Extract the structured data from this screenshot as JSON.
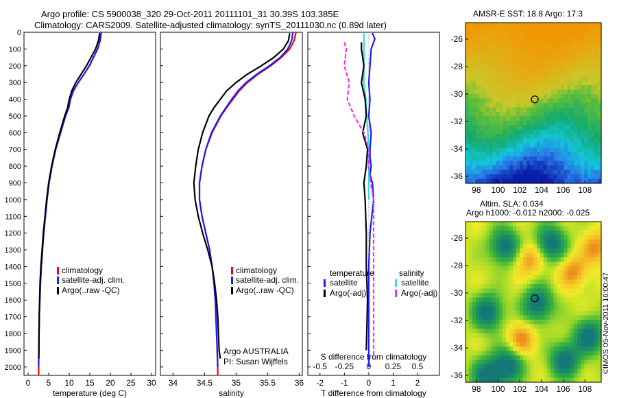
{
  "header": {
    "title_line1": "Argo profile: CS 5900038_320 29-Oct-2011 20111101_31 30.39S 103.385E",
    "title_line2": "Climatology: CARS2009. Satellite-adjusted climatology: synTS_20111030.nc (0.89d later)",
    "sst_title": "AMSR-E SST: 18.8 Argo: 17.3",
    "sla_title1": "Altim. SLA: 0.034",
    "sla_title2": "Argo h1000: -0.012 h2000: -0.025",
    "stamp": "©IMOS 05-Nov-2011 16:00:47"
  },
  "colors": {
    "climatology": "#ff0000",
    "satellite_adj": "#1a1aff",
    "argo": "#000000",
    "sal_satellite": "#33dddd",
    "sal_argo": "#ee33ee"
  },
  "chart_data": [
    {
      "type": "line",
      "name": "temperature",
      "xlabel": "temperature (deg C)",
      "ylabel": "",
      "xlim": [
        -1,
        31
      ],
      "ylim": [
        0,
        2050
      ],
      "y_inverted": true,
      "xticks": [
        "0",
        "5",
        "10",
        "15",
        "20",
        "25",
        "30"
      ],
      "yticks": [
        "0",
        "100",
        "200",
        "300",
        "400",
        "500",
        "600",
        "700",
        "800",
        "900",
        "1000",
        "1100",
        "1200",
        "1300",
        "1400",
        "1500",
        "1600",
        "1700",
        "1800",
        "1900",
        "2000"
      ],
      "legend": [
        "climatology",
        "satellite-adj. clim.",
        "Argo(..raw -QC)"
      ],
      "series": [
        {
          "name": "climatology",
          "x": [
            17.8,
            17.5,
            16.9,
            15.9,
            14.9,
            13.6,
            12.2,
            11.0,
            10.3,
            9.9,
            9.1,
            7.9,
            6.7,
            5.8,
            5.1,
            4.6,
            4.2,
            3.8,
            3.5,
            3.2,
            3.0,
            2.85,
            2.7,
            2.6,
            2.55
          ],
          "y": [
            0,
            50,
            100,
            150,
            200,
            250,
            300,
            350,
            400,
            450,
            500,
            600,
            700,
            800,
            900,
            1000,
            1100,
            1200,
            1300,
            1400,
            1500,
            1600,
            1700,
            1900,
            2050
          ]
        },
        {
          "name": "satellite-adj. clim.",
          "x": [
            17.8,
            17.5,
            16.9,
            15.9,
            14.9,
            13.6,
            12.2,
            11.0,
            10.3,
            9.9,
            9.1,
            7.9,
            6.7,
            5.8,
            5.1,
            4.6,
            4.2,
            3.8,
            3.5,
            3.2,
            3.0,
            2.85,
            2.7,
            2.6,
            2.55
          ],
          "y": [
            0,
            50,
            100,
            150,
            200,
            250,
            300,
            350,
            400,
            450,
            500,
            600,
            700,
            800,
            900,
            1000,
            1100,
            1200,
            1300,
            1400,
            1500,
            1600,
            1700,
            1900,
            2000
          ]
        },
        {
          "name": "Argo(..raw -QC)",
          "x": [
            17.4,
            17.1,
            16.4,
            15.3,
            14.2,
            12.9,
            11.6,
            10.6,
            10.0,
            9.6,
            8.9,
            7.7,
            6.6,
            5.7,
            5.0,
            4.5,
            4.1,
            3.7,
            3.4,
            3.1,
            2.9,
            2.8,
            2.7,
            2.6
          ],
          "y": [
            5,
            50,
            100,
            150,
            200,
            250,
            300,
            350,
            400,
            450,
            500,
            600,
            700,
            800,
            900,
            1000,
            1100,
            1200,
            1300,
            1400,
            1500,
            1600,
            1700,
            1950
          ]
        }
      ]
    },
    {
      "type": "line",
      "name": "salinity",
      "xlabel": "salinity",
      "xlim": [
        33.8,
        36.05
      ],
      "ylim": [
        0,
        2050
      ],
      "y_inverted": true,
      "xticks": [
        "34",
        "34.5",
        "35",
        "35.5",
        "36"
      ],
      "legend": [
        "climatology",
        "satellite-adj. clim.",
        "Argo(..raw -QC)"
      ],
      "annotations": [
        "Argo AUSTRALIA",
        "PI: Susan Wijffels"
      ],
      "series": [
        {
          "name": "climatology",
          "x": [
            35.95,
            35.92,
            35.85,
            35.72,
            35.55,
            35.35,
            35.18,
            35.05,
            34.95,
            34.85,
            34.76,
            34.62,
            34.52,
            34.46,
            34.42,
            34.42,
            34.46,
            34.52,
            34.58,
            34.62,
            34.65,
            34.67,
            34.68,
            34.7,
            34.71
          ],
          "y": [
            0,
            50,
            100,
            150,
            200,
            250,
            300,
            350,
            400,
            450,
            500,
            600,
            700,
            800,
            900,
            1000,
            1100,
            1200,
            1300,
            1400,
            1500,
            1600,
            1700,
            1900,
            2050
          ]
        },
        {
          "name": "satellite-adj. clim.",
          "x": [
            35.9,
            35.88,
            35.82,
            35.7,
            35.53,
            35.33,
            35.16,
            35.03,
            34.93,
            34.84,
            34.75,
            34.61,
            34.52,
            34.46,
            34.42,
            34.42,
            34.46,
            34.52,
            34.58,
            34.62,
            34.65,
            34.67,
            34.68,
            34.7,
            34.71
          ],
          "y": [
            0,
            50,
            100,
            150,
            200,
            250,
            300,
            350,
            400,
            450,
            500,
            600,
            700,
            800,
            900,
            1000,
            1100,
            1200,
            1300,
            1400,
            1500,
            1600,
            1700,
            1900,
            2000
          ]
        },
        {
          "name": "Argo(..raw -QC)",
          "x": [
            35.85,
            35.83,
            35.75,
            35.6,
            35.4,
            35.18,
            35.0,
            34.85,
            34.75,
            34.65,
            34.57,
            34.47,
            34.4,
            34.36,
            34.33,
            34.35,
            34.4,
            34.47,
            34.55,
            34.62,
            34.66,
            34.69,
            34.71,
            34.73,
            34.75
          ],
          "y": [
            5,
            50,
            100,
            150,
            200,
            250,
            300,
            350,
            400,
            450,
            500,
            600,
            700,
            800,
            900,
            1000,
            1100,
            1200,
            1300,
            1400,
            1500,
            1600,
            1700,
            1900,
            1950
          ]
        }
      ]
    },
    {
      "type": "line",
      "name": "difference",
      "xlabel": "T difference from climatology",
      "xlabel_top": "S difference from climatology",
      "xlim": [
        -2.5,
        2.9
      ],
      "ylim": [
        0,
        2050
      ],
      "y_inverted": true,
      "xticks": [
        "-2",
        "-1",
        "0",
        "1",
        "2"
      ],
      "sticks": [
        "-0.5",
        "-0.25",
        "0",
        "0.25",
        "0.5"
      ],
      "legend_title_t": "temperature",
      "legend_title_s": "salinity",
      "legend": [
        "satellite",
        "Argo(-adj)",
        "satellite",
        "Argo(-adj)"
      ],
      "series": [
        {
          "name": "T satellite",
          "x": [
            0.15,
            0.25,
            0.1,
            0.05,
            0.0,
            0.05,
            0.0,
            0.1,
            0.05,
            0.05,
            0.1,
            0.05,
            0.15,
            0.2,
            0.05,
            0.0,
            0.0,
            0.0,
            0.0,
            0.0
          ],
          "y": [
            5,
            40,
            100,
            200,
            300,
            400,
            500,
            600,
            700,
            750,
            800,
            850,
            900,
            1000,
            1200,
            1400,
            1500,
            1600,
            1800,
            2000
          ]
        },
        {
          "name": "S satellite",
          "x": [
            -0.05,
            -0.05,
            -0.05,
            -0.05,
            -0.05,
            -0.03,
            -0.02,
            -0.01,
            0.0,
            0.0,
            0.0,
            0.0
          ],
          "y": [
            5,
            50,
            100,
            200,
            300,
            400,
            500,
            600,
            700,
            800,
            900,
            1000
          ]
        },
        {
          "name": "T Argo(-adj)",
          "x": [
            -0.3,
            -0.3,
            -0.2,
            -0.3,
            -0.15,
            -0.1,
            -0.25,
            -0.05,
            -0.1,
            -0.2,
            -0.15,
            -0.1,
            -0.1,
            -0.05,
            -0.1
          ],
          "y": [
            60,
            100,
            200,
            300,
            400,
            500,
            600,
            700,
            800,
            900,
            1000,
            1200,
            1400,
            1600,
            1900
          ]
        },
        {
          "name": "S Argo(-adj)",
          "x": [
            -0.25,
            -0.23,
            -0.25,
            -0.2,
            -0.22,
            -0.15,
            -0.05,
            0.0,
            0.0,
            0.02,
            0.05,
            0.05,
            0.05,
            0.05,
            0.05
          ],
          "y": [
            60,
            100,
            200,
            300,
            400,
            500,
            600,
            700,
            800,
            900,
            1000,
            1200,
            1400,
            1600,
            1950
          ]
        }
      ]
    },
    {
      "type": "heatmap",
      "name": "sst_map",
      "xlim": [
        97,
        109.5
      ],
      "ylim": [
        -36.5,
        -24.8
      ],
      "xticks": [
        "98",
        "100",
        "102",
        "104",
        "106",
        "108"
      ],
      "yticks": [
        "-26",
        "-28",
        "-30",
        "-32",
        "-34",
        "-36"
      ],
      "marker": {
        "lon": 103.385,
        "lat": -30.39
      }
    },
    {
      "type": "heatmap",
      "name": "sla_map",
      "xlim": [
        97,
        109.5
      ],
      "ylim": [
        -36.5,
        -24.8
      ],
      "xticks": [
        "98",
        "100",
        "102",
        "104",
        "106",
        "108"
      ],
      "yticks": [
        "-26",
        "-28",
        "-30",
        "-32",
        "-34",
        "-36"
      ],
      "marker": {
        "lon": 103.385,
        "lat": -30.39
      }
    }
  ]
}
